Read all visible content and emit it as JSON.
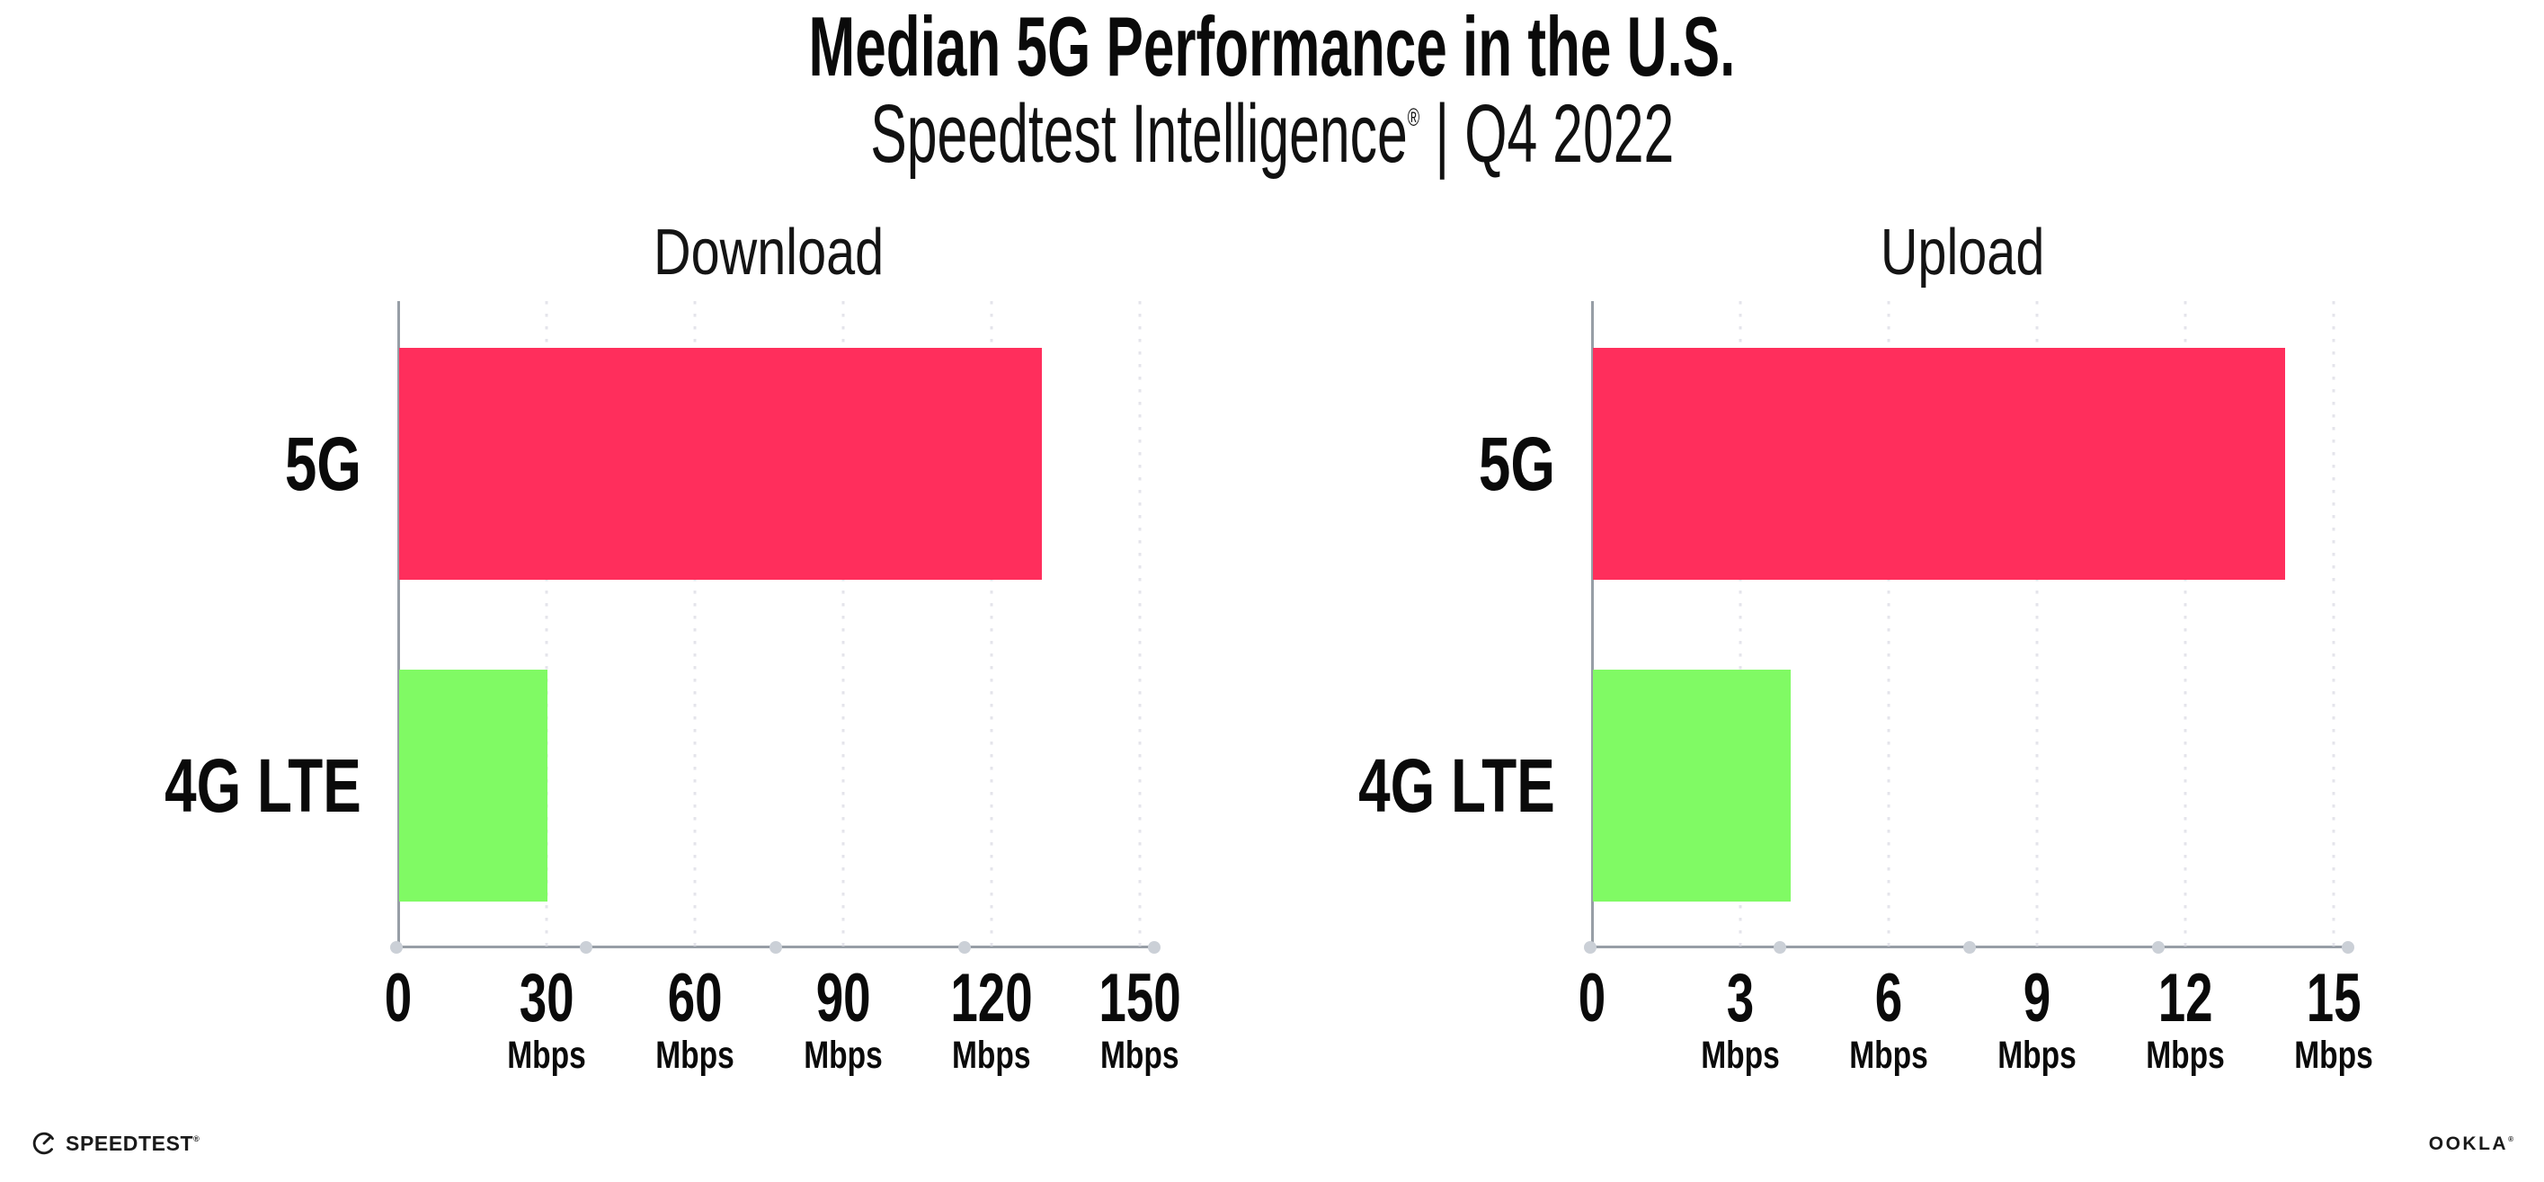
{
  "page": {
    "background": "#FFFFFF"
  },
  "header": {
    "title": "Median 5G Performance in the U.S.",
    "subtitle": {
      "brand": "Speedtest Intelligence",
      "registered_mark": "®",
      "separator": "|",
      "period": "Q4 2022"
    }
  },
  "chart_data": [
    {
      "type": "bar",
      "orientation": "horizontal",
      "title": "Download",
      "categories": [
        "5G",
        "4G LTE"
      ],
      "values": [
        130,
        30
      ],
      "unit": "Mbps",
      "xlim": [
        0,
        150
      ],
      "xticks": [
        0,
        30,
        60,
        90,
        120,
        150
      ],
      "bar_colors": [
        "#FF2E5C",
        "#80FA64"
      ],
      "grid": "vertical-dotted",
      "legend": "none"
    },
    {
      "type": "bar",
      "orientation": "horizontal",
      "title": "Upload",
      "categories": [
        "5G",
        "4G LTE"
      ],
      "values": [
        14,
        4
      ],
      "unit": "Mbps",
      "xlim": [
        0,
        15
      ],
      "xticks": [
        0,
        3,
        6,
        9,
        12,
        15
      ],
      "bar_colors": [
        "#FF2E5C",
        "#80FA64"
      ],
      "grid": "vertical-dotted",
      "legend": "none"
    }
  ],
  "colors": {
    "bar_5g": "#FF2E5C",
    "bar_4g_lte": "#80FA64",
    "axis_line": "#979EA6",
    "axis_dot": "#CBD0D7",
    "gridline": "#E4E4EB",
    "text": "#0A0A0A"
  },
  "footer": {
    "speedtest": {
      "label": "SPEEDTEST",
      "mark": "®"
    },
    "ookla": {
      "label": "OOKLA",
      "mark": "®"
    }
  }
}
